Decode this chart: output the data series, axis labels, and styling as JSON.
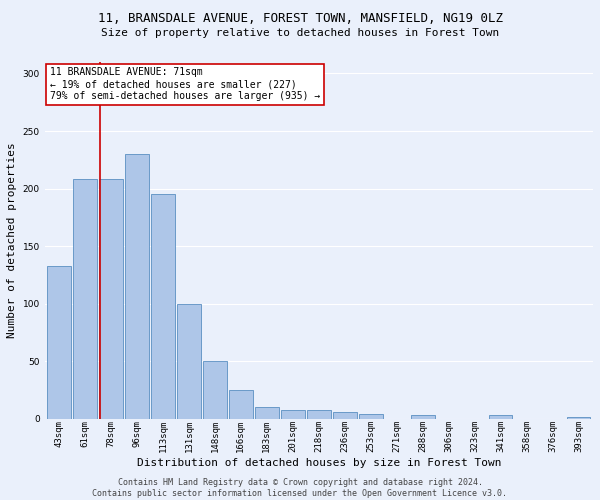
{
  "title_line1": "11, BRANSDALE AVENUE, FOREST TOWN, MANSFIELD, NG19 0LZ",
  "title_line2": "Size of property relative to detached houses in Forest Town",
  "xlabel": "Distribution of detached houses by size in Forest Town",
  "ylabel": "Number of detached properties",
  "footer_line1": "Contains HM Land Registry data © Crown copyright and database right 2024.",
  "footer_line2": "Contains public sector information licensed under the Open Government Licence v3.0.",
  "annotation_line1": "11 BRANSDALE AVENUE: 71sqm",
  "annotation_line2": "← 19% of detached houses are smaller (227)",
  "annotation_line3": "79% of semi-detached houses are larger (935) →",
  "bar_labels": [
    "43sqm",
    "61sqm",
    "78sqm",
    "96sqm",
    "113sqm",
    "131sqm",
    "148sqm",
    "166sqm",
    "183sqm",
    "201sqm",
    "218sqm",
    "236sqm",
    "253sqm",
    "271sqm",
    "288sqm",
    "306sqm",
    "323sqm",
    "341sqm",
    "358sqm",
    "376sqm",
    "393sqm"
  ],
  "bar_values": [
    133,
    208,
    208,
    230,
    195,
    100,
    50,
    25,
    10,
    8,
    8,
    6,
    4,
    0,
    3,
    0,
    0,
    3,
    0,
    0,
    2
  ],
  "bar_color": "#aec6e8",
  "bar_edge_color": "#5a8fc2",
  "ylim": [
    0,
    310
  ],
  "yticks": [
    0,
    50,
    100,
    150,
    200,
    250,
    300
  ],
  "background_color": "#eaf0fb",
  "grid_color": "#ffffff",
  "annotation_box_color": "#ffffff",
  "annotation_box_edge": "#cc0000",
  "redline_color": "#cc0000",
  "title_fontsize": 9,
  "subtitle_fontsize": 8,
  "ylabel_fontsize": 8,
  "xlabel_fontsize": 8,
  "tick_fontsize": 6.5,
  "footer_fontsize": 6,
  "annotation_fontsize": 7
}
